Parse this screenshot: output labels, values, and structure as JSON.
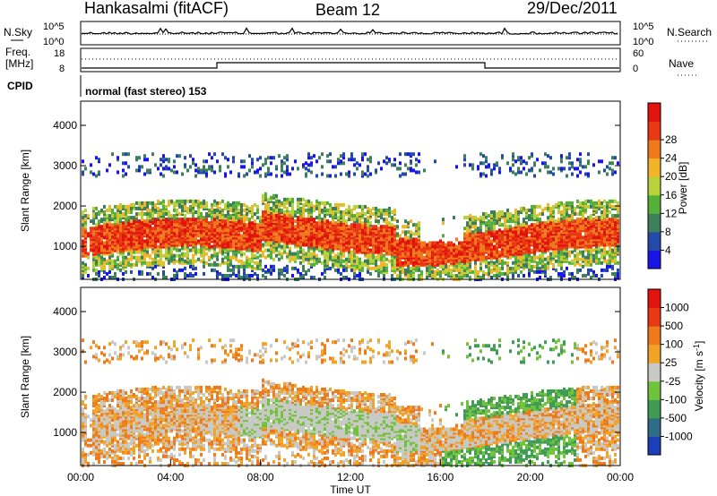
{
  "header": {
    "title": "Hankasalmi (fitACF)",
    "beam": "Beam 12",
    "date": "29/Dec/2011"
  },
  "noise_panel": {
    "left_label": "N.Sky",
    "right_label": "N.Search",
    "left_ticks": [
      "10^5",
      "10^0"
    ],
    "right_ticks": [
      "10^5",
      "10^0"
    ]
  },
  "freq_panel": {
    "left_label_line1": "Freq.",
    "left_label_line2": "[MHz]",
    "right_label": "Nave",
    "left_ticks": [
      "18",
      "8"
    ],
    "right_ticks": [
      "60",
      "0"
    ]
  },
  "cpid": {
    "label": "CPID",
    "text": "normal (fast stereo) 153"
  },
  "chart_data": [
    {
      "type": "heatmap",
      "name": "power",
      "ylabel": "Slant Range [km]",
      "xlabel": "",
      "yticks": [
        1000,
        2000,
        3000,
        4000
      ],
      "ylim": [
        180,
        4600
      ],
      "xlim": [
        "00:00",
        "24:00"
      ],
      "colorbar": {
        "label": "Power [dB]",
        "ticks": [
          "4",
          "8",
          "12",
          "16",
          "20",
          "24",
          "28"
        ],
        "colors": [
          "#1a14e8",
          "#244aa8",
          "#3d7f5a",
          "#55b03a",
          "#b7d23a",
          "#f2b52a",
          "#ef7a1c",
          "#ea3a14",
          "#e2130d"
        ]
      }
    },
    {
      "type": "heatmap",
      "name": "velocity",
      "ylabel": "Slant Range [km]",
      "xlabel": "Time UT",
      "yticks": [
        1000,
        2000,
        3000,
        4000
      ],
      "ylim": [
        180,
        4600
      ],
      "xlim": [
        "00:00",
        "24:00"
      ],
      "xticks": [
        "00:00",
        "04:00",
        "08:00",
        "12:00",
        "16:00",
        "20:00",
        "00:00"
      ],
      "colorbar": {
        "label": "Velocity [m s",
        "label_sup": "-1",
        "label_close": "]",
        "ticks": [
          "1000",
          "500",
          "100",
          "25",
          "-25",
          "-100",
          "-500",
          "-1000"
        ],
        "colors": [
          "#1a3fb8",
          "#2f6c88",
          "#3f9b55",
          "#6fc23a",
          "#c8c8c4",
          "#f2a227",
          "#ef7a1c",
          "#ea3a14",
          "#e2130d"
        ]
      }
    }
  ],
  "colors": {
    "low_power": "#2541b5",
    "mid_power": "#48a93a",
    "high_power": "#e8240f",
    "ground_scatter": "#c5c5c1"
  }
}
